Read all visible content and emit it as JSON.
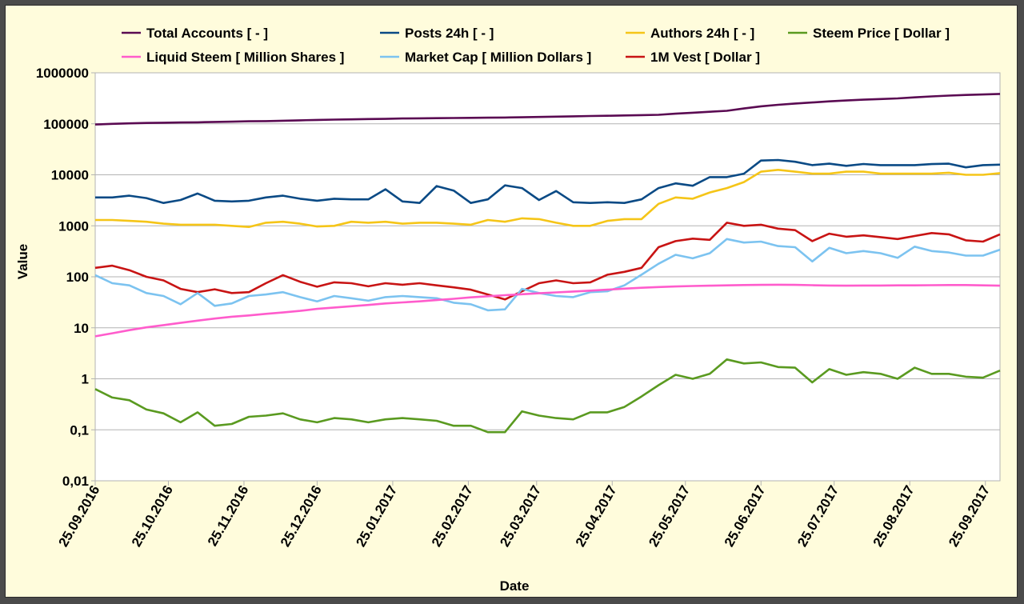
{
  "chart_data": {
    "type": "line",
    "xlabel": "Date",
    "ylabel": "Value",
    "yscale": "log",
    "ylim": [
      0.01,
      1000000
    ],
    "yticks": [
      "0,01",
      "0,1",
      "1",
      "10",
      "100",
      "1000",
      "10000",
      "100000",
      "1000000"
    ],
    "xlim": [
      "2016-09-25",
      "2017-10-01"
    ],
    "xticks": [
      "25.09.2016",
      "25.10.2016",
      "25.11.2016",
      "25.12.2016",
      "25.01.2017",
      "25.02.2017",
      "25.03.2017",
      "25.04.2017",
      "25.05.2017",
      "25.06.2017",
      "25.07.2017",
      "25.08.2017",
      "25.09.2017"
    ],
    "grid": "horizontal",
    "legend": "top",
    "x": [
      "2016-09-25",
      "2016-10-02",
      "2016-10-09",
      "2016-10-16",
      "2016-10-23",
      "2016-10-30",
      "2016-11-06",
      "2016-11-13",
      "2016-11-20",
      "2016-11-27",
      "2016-12-04",
      "2016-12-11",
      "2016-12-18",
      "2016-12-25",
      "2017-01-01",
      "2017-01-08",
      "2017-01-15",
      "2017-01-22",
      "2017-01-29",
      "2017-02-05",
      "2017-02-12",
      "2017-02-19",
      "2017-02-26",
      "2017-03-05",
      "2017-03-12",
      "2017-03-19",
      "2017-03-26",
      "2017-04-02",
      "2017-04-09",
      "2017-04-16",
      "2017-04-23",
      "2017-04-30",
      "2017-05-07",
      "2017-05-14",
      "2017-05-21",
      "2017-05-28",
      "2017-06-04",
      "2017-06-11",
      "2017-06-18",
      "2017-06-25",
      "2017-07-02",
      "2017-07-09",
      "2017-07-16",
      "2017-07-23",
      "2017-07-30",
      "2017-08-06",
      "2017-08-13",
      "2017-08-20",
      "2017-08-27",
      "2017-09-03",
      "2017-09-10",
      "2017-09-17",
      "2017-09-24",
      "2017-10-01"
    ],
    "series": [
      {
        "name": "Total Accounts [ - ]",
        "color": "#5a0a52",
        "values": [
          97000,
          100000,
          102000,
          104000,
          105000,
          106000,
          107000,
          109000,
          110000,
          112000,
          113000,
          115000,
          117000,
          119000,
          121000,
          122000,
          124000,
          125000,
          127000,
          128000,
          129000,
          130000,
          131000,
          132000,
          133000,
          134000,
          136000,
          138000,
          140000,
          142000,
          144000,
          146000,
          148000,
          150000,
          158000,
          165000,
          172000,
          180000,
          200000,
          220000,
          236000,
          250000,
          262000,
          275000,
          287000,
          297000,
          306000,
          315000,
          330000,
          345000,
          357000,
          368000,
          376000,
          385000
        ]
      },
      {
        "name": "Posts 24h [ - ]",
        "color": "#0a4a85",
        "values": [
          3600,
          3600,
          3900,
          3500,
          2800,
          3200,
          4300,
          3100,
          3000,
          3100,
          3600,
          3900,
          3400,
          3100,
          3400,
          3300,
          3300,
          5200,
          3000,
          2800,
          6000,
          4900,
          2800,
          3300,
          6200,
          5500,
          3200,
          4800,
          2900,
          2800,
          2900,
          2800,
          3300,
          5500,
          6800,
          6100,
          9000,
          9000,
          10500,
          19000,
          19500,
          18000,
          15500,
          16500,
          15000,
          16300,
          15500,
          15500,
          15500,
          16200,
          16500,
          14000,
          15500,
          15800
        ]
      },
      {
        "name": "Authors 24h [ - ]",
        "color": "#f5c518",
        "values": [
          1300,
          1300,
          1250,
          1200,
          1100,
          1050,
          1050,
          1050,
          1000,
          950,
          1150,
          1200,
          1100,
          970,
          1000,
          1200,
          1150,
          1200,
          1100,
          1150,
          1150,
          1100,
          1050,
          1300,
          1200,
          1400,
          1350,
          1150,
          1000,
          1000,
          1250,
          1350,
          1350,
          2700,
          3600,
          3400,
          4500,
          5500,
          7200,
          11500,
          12500,
          11500,
          10500,
          10500,
          11500,
          11500,
          10500,
          10500,
          10500,
          10500,
          11000,
          10000,
          10000,
          10800
        ]
      },
      {
        "name": "Steem Price [ Dollar ]",
        "color": "#5a9a20",
        "values": [
          0.63,
          0.43,
          0.38,
          0.25,
          0.21,
          0.14,
          0.22,
          0.12,
          0.13,
          0.18,
          0.19,
          0.21,
          0.16,
          0.14,
          0.17,
          0.16,
          0.14,
          0.16,
          0.17,
          0.16,
          0.15,
          0.12,
          0.12,
          0.09,
          0.09,
          0.23,
          0.19,
          0.17,
          0.16,
          0.22,
          0.22,
          0.28,
          0.45,
          0.75,
          1.2,
          1.0,
          1.25,
          2.4,
          2.0,
          2.1,
          1.7,
          1.65,
          0.85,
          1.55,
          1.2,
          1.35,
          1.25,
          1.0,
          1.65,
          1.25,
          1.25,
          1.1,
          1.05,
          1.45
        ]
      },
      {
        "name": "Liquid Steem [ Million Shares ]",
        "color": "#ff5ccc",
        "values": [
          6.8,
          7.8,
          9.0,
          10.2,
          11.3,
          12.5,
          13.8,
          15.2,
          16.5,
          17.5,
          18.8,
          20.0,
          21.5,
          23.5,
          25.0,
          26.5,
          28.0,
          30.0,
          31.5,
          33.0,
          35.0,
          37.0,
          39.5,
          41.5,
          43.5,
          45.5,
          47.5,
          49.5,
          51.5,
          53.5,
          56.0,
          58.5,
          61.0,
          63.0,
          64.5,
          66.0,
          67.0,
          68.0,
          69.0,
          69.5,
          70.0,
          69.5,
          68.5,
          67.5,
          67.0,
          67.5,
          67.5,
          68.0,
          68.0,
          68.5,
          69.0,
          69.0,
          68.0,
          67.0
        ]
      },
      {
        "name": "Market Cap [ Million Dollars ]",
        "color": "#7cc3f0",
        "values": [
          108,
          75,
          68,
          48,
          42,
          29,
          48,
          27,
          30,
          42,
          45,
          50,
          40,
          33,
          42,
          38,
          34,
          40,
          42,
          40,
          38,
          31,
          29,
          22,
          23,
          58,
          48,
          42,
          40,
          50,
          52,
          68,
          110,
          180,
          270,
          230,
          290,
          550,
          470,
          490,
          400,
          380,
          200,
          370,
          290,
          320,
          290,
          235,
          390,
          320,
          300,
          260,
          260,
          340
        ]
      },
      {
        "name": "1M Vest [ Dollar ]",
        "color": "#c81414",
        "values": [
          150,
          165,
          135,
          100,
          85,
          58,
          50,
          57,
          48,
          50,
          75,
          108,
          80,
          64,
          78,
          75,
          65,
          75,
          70,
          75,
          68,
          62,
          56,
          45,
          36,
          52,
          75,
          85,
          75,
          78,
          110,
          125,
          150,
          380,
          500,
          560,
          530,
          1150,
          1000,
          1050,
          880,
          820,
          500,
          700,
          610,
          650,
          600,
          550,
          630,
          720,
          680,
          520,
          490,
          680
        ]
      }
    ]
  }
}
